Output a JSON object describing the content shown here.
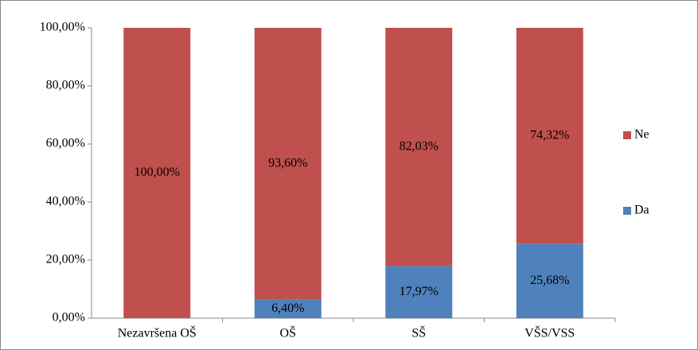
{
  "chart_data": {
    "type": "stacked_bar",
    "categories": [
      "Nezavršena OŠ",
      "OŠ",
      "SŠ",
      "VŠS/VSS"
    ],
    "series": [
      {
        "name": "Da",
        "color": "#4f81bd",
        "values": [
          0,
          6.4,
          17.97,
          25.68
        ],
        "value_labels": [
          null,
          "6,40%",
          "17,97%",
          "25,68%"
        ]
      },
      {
        "name": "Ne",
        "color": "#c0504d",
        "values": [
          100,
          93.6,
          82.03,
          74.32
        ],
        "value_labels": [
          "100,00%",
          "93,60%",
          "82,03%",
          "74,32%"
        ]
      }
    ],
    "ylim": [
      0,
      100
    ],
    "yticks": [
      {
        "value": 0,
        "label": "0,00%"
      },
      {
        "value": 20,
        "label": "20,00%"
      },
      {
        "value": 40,
        "label": "40,00%"
      },
      {
        "value": 60,
        "label": "60,00%"
      },
      {
        "value": 80,
        "label": "80,00%"
      },
      {
        "value": 100,
        "label": "100,00%"
      }
    ],
    "legend": "right"
  }
}
